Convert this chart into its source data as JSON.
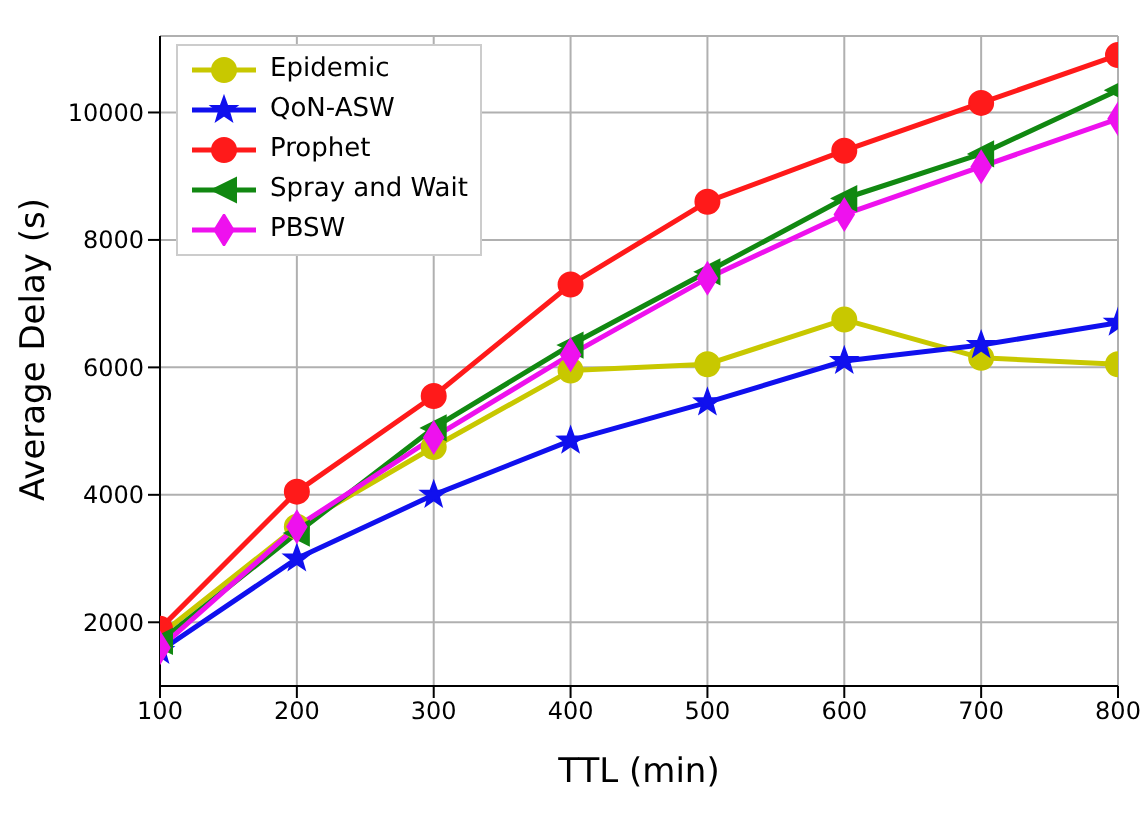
{
  "chart_data": {
    "type": "line",
    "xlabel": "TTL (min)",
    "ylabel": "Average Delay (s)",
    "x": [
      100,
      200,
      300,
      400,
      500,
      600,
      700,
      800
    ],
    "xlim": [
      100,
      800
    ],
    "xticks": [
      100,
      200,
      300,
      400,
      500,
      600,
      700,
      800
    ],
    "ylim": [
      1000,
      11200
    ],
    "yticks": [
      2000,
      4000,
      6000,
      8000,
      10000
    ],
    "grid": true,
    "legend": "top left",
    "series": [
      {
        "name": "Epidemic",
        "color": "#c8c800",
        "marker": "circle",
        "values": [
          1800,
          3500,
          4750,
          5950,
          6050,
          6750,
          6150,
          6050
        ]
      },
      {
        "name": "QoN-ASW",
        "color": "#1010ee",
        "marker": "star",
        "values": [
          1550,
          3000,
          4000,
          4850,
          5450,
          6100,
          6350,
          6700
        ]
      },
      {
        "name": "Prophet",
        "color": "#ff1a1a",
        "marker": "circle",
        "values": [
          1900,
          4050,
          5550,
          7300,
          8600,
          9400,
          10150,
          10900
        ]
      },
      {
        "name": "Spray and Wait",
        "color": "#118811",
        "marker": "triangle",
        "values": [
          1700,
          3400,
          5050,
          6350,
          7500,
          8650,
          9350,
          10350
        ]
      },
      {
        "name": "PBSW",
        "color": "#ee11ee",
        "marker": "diamond",
        "values": [
          1600,
          3500,
          4900,
          6200,
          7400,
          8400,
          9150,
          9900
        ]
      }
    ]
  }
}
